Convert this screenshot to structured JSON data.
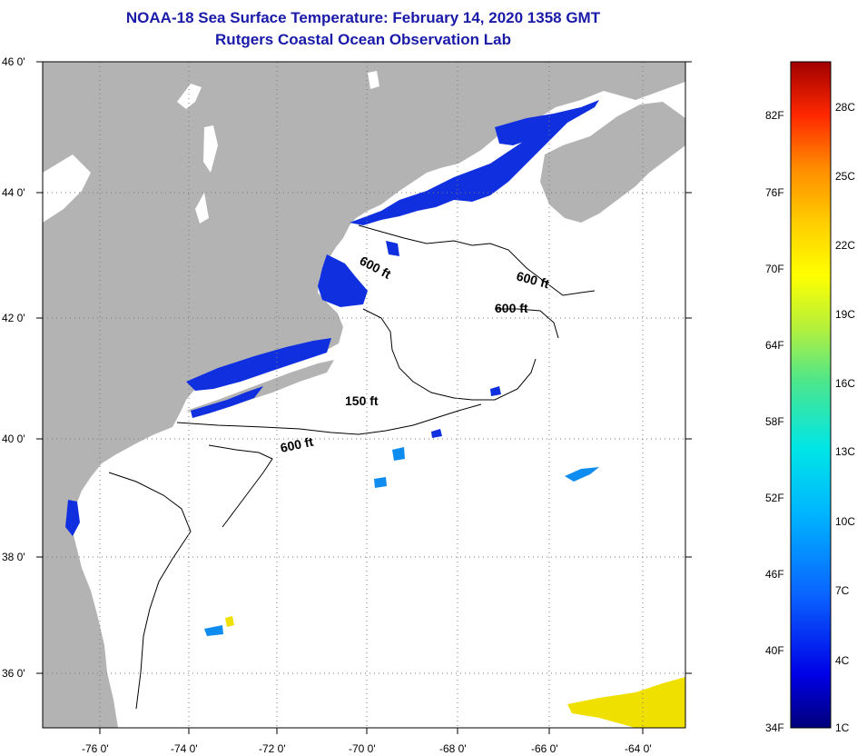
{
  "header": {
    "title": "NOAA-18 Sea Surface Temperature:  February 14, 2020 1358 GMT",
    "subtitle": "Rutgers Coastal Ocean Observation Lab"
  },
  "map": {
    "lat_labels": [
      "46 0'",
      "44 0'",
      "42 0'",
      "40 0'",
      "38 0'",
      "36 0'"
    ],
    "lon_labels": [
      "-76 0'",
      "-74 0'",
      "-72 0'",
      "-70 0'",
      "-68 0'",
      "-66 0'",
      "-64 0'"
    ],
    "contours": [
      "600 ft",
      "600 ft",
      "600 ft",
      "150 ft",
      "600 ft"
    ],
    "colors": {
      "land": "#b3b3b3",
      "ocean": "#ffffff",
      "cold": "#1030e0"
    }
  },
  "colorbar": {
    "fahrenheit": [
      "82F",
      "76F",
      "70F",
      "64F",
      "58F",
      "52F",
      "46F",
      "40F",
      "34F"
    ],
    "celsius": [
      "28C",
      "25C",
      "22C",
      "19C",
      "16C",
      "13C",
      "10C",
      "7C",
      "4C",
      "1C"
    ]
  }
}
